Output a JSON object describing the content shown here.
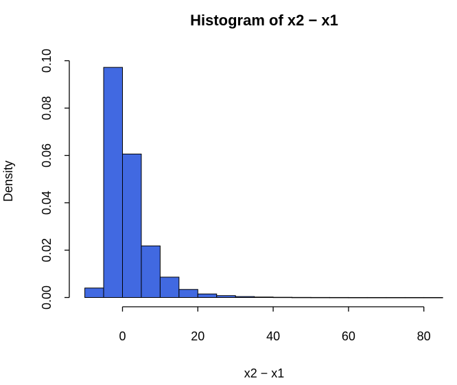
{
  "chart_data": {
    "type": "bar",
    "title": "Histogram of x2 − x1",
    "xlabel": "x2 − x1",
    "ylabel": "Density",
    "bar_color": "#4169E1",
    "bin_edges": [
      -10,
      -5,
      0,
      5,
      10,
      15,
      20,
      25,
      30,
      35,
      40,
      45,
      50,
      55,
      60,
      65,
      70,
      75,
      80,
      85
    ],
    "values": [
      0.004,
      0.0972,
      0.0606,
      0.0218,
      0.0086,
      0.0034,
      0.0015,
      0.0008,
      0.0004,
      0.0002,
      0.0001,
      5e-05,
      3e-05,
      2e-05,
      1e-05,
      1e-05,
      1e-05,
      1e-05,
      1e-05
    ],
    "xlim": [
      -10,
      85
    ],
    "ylim": [
      0,
      0.1
    ],
    "x_ticks": [
      0,
      20,
      40,
      60,
      80
    ],
    "x_tick_labels": [
      "0",
      "20",
      "40",
      "60",
      "80"
    ],
    "y_ticks": [
      0,
      0.02,
      0.04,
      0.06,
      0.08,
      0.1
    ],
    "y_tick_labels": [
      "0.00",
      "0.02",
      "0.04",
      "0.06",
      "0.08",
      "0.10"
    ],
    "grid": false,
    "legend": "none"
  }
}
